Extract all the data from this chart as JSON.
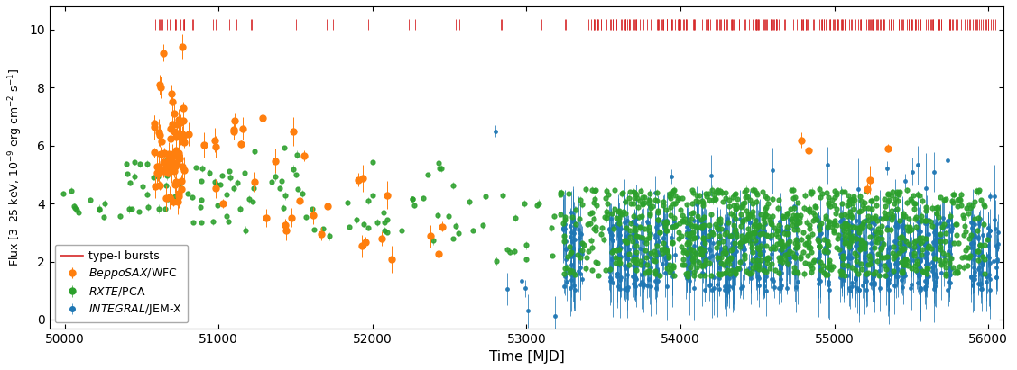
{
  "xlabel": "Time [MJD]",
  "ylabel": "Flux [3–25 keV, 10$^{-9}$ erg cm$^{-2}$ s$^{-1}$]",
  "xlim": [
    49900,
    56100
  ],
  "ylim": [
    -0.3,
    10.8
  ],
  "xticks": [
    50000,
    51000,
    52000,
    53000,
    54000,
    55000,
    56000
  ],
  "yticks": [
    0,
    2,
    4,
    6,
    8,
    10
  ],
  "colors": {
    "bepposax": "#ff7f0e",
    "rxte": "#2ca02c",
    "integral": "#1f77b4",
    "bursts": "#d62728"
  },
  "burst_y_center": 10.18,
  "burst_half_height": 0.18,
  "figsize": [
    11.27,
    4.11
  ],
  "dpi": 100
}
